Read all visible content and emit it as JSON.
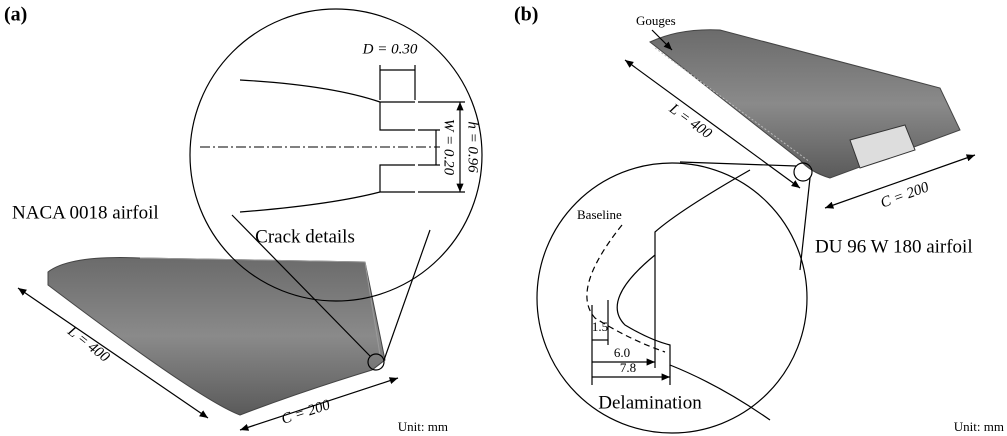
{
  "panels": [
    {
      "label": "(a)",
      "airfoil": "NACA 0018 airfoil",
      "detail": "Crack details",
      "length": "L = 400",
      "chord": "C = 200",
      "crack_depth": "D = 0.30",
      "crack_height": "h = 0.96",
      "crack_width": "W = 0.20",
      "unit": "Unit: mm"
    },
    {
      "label": "(b)",
      "airfoil": "DU 96 W 180 airfoil",
      "detail": "Delamination",
      "length": "L = 400",
      "chord": "C = 200",
      "defect": "Gouges",
      "baseline": "Baseline",
      "dims": [
        "1.5",
        "6.0",
        "7.8"
      ],
      "unit": "Unit: mm"
    }
  ]
}
